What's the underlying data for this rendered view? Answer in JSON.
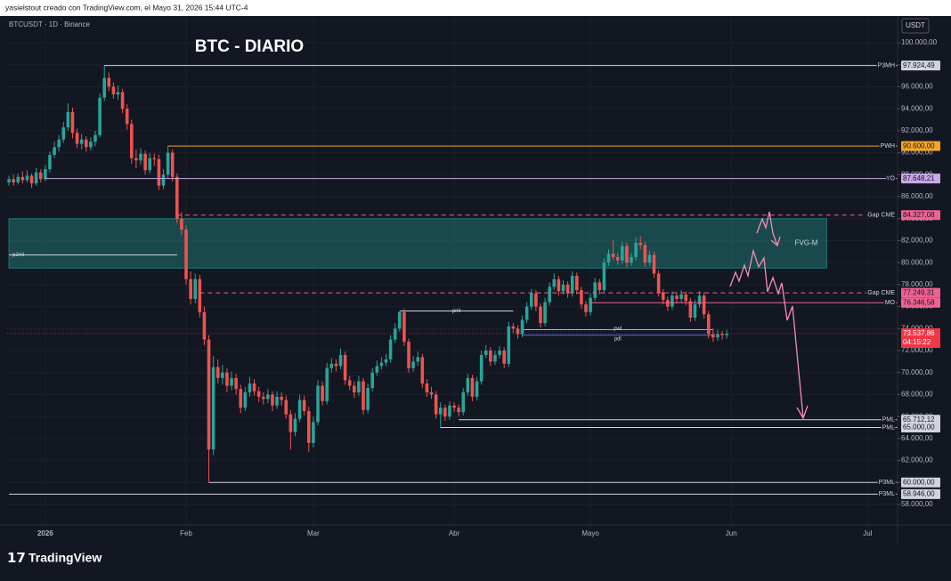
{
  "chart_data": {
    "type": "candlestick",
    "header": "yasielstout creado con TradingView.com, el Mayo 31, 2026 15:44 UTC-4",
    "symbol": "BTCUSDT · 1D · Binance",
    "title": "BTC - DIARIO",
    "currency": "USDT",
    "brand": "TradingView",
    "up_color": "#26a69a",
    "down_color": "#ef5350",
    "ylim": [
      56140,
      102430
    ],
    "xlim": [
      -0.4,
      195.6
    ],
    "yticks": [
      {
        "value": 58000,
        "label": "58.000,00"
      },
      {
        "value": 60000,
        "label": "60.000,00"
      },
      {
        "value": 62000,
        "label": "62.000,00"
      },
      {
        "value": 64000,
        "label": "64.000,00"
      },
      {
        "value": 66000,
        "label": "66.000,00"
      },
      {
        "value": 68000,
        "label": "68.000,00"
      },
      {
        "value": 70000,
        "label": "70.000,00"
      },
      {
        "value": 72000,
        "label": "72.000,00"
      },
      {
        "value": 74000,
        "label": "74.000,00"
      },
      {
        "value": 76000,
        "label": "76.000,00"
      },
      {
        "value": 78000,
        "label": "78.000,00"
      },
      {
        "value": 80000,
        "label": "80.000,00"
      },
      {
        "value": 82000,
        "label": "82.000,00"
      },
      {
        "value": 84000,
        "label": "84.000,00"
      },
      {
        "value": 86000,
        "label": "86.000,00"
      },
      {
        "value": 88000,
        "label": "88.000,00"
      },
      {
        "value": 90000,
        "label": "90.000,00"
      },
      {
        "value": 92000,
        "label": "92.000,00"
      },
      {
        "value": 94000,
        "label": "94.000,00"
      },
      {
        "value": 96000,
        "label": "96.000,00"
      },
      {
        "value": 98000,
        "label": "98.000,00"
      },
      {
        "value": 100000,
        "label": "100.000,00"
      }
    ],
    "xticks": [
      {
        "value": 8,
        "label": "2026"
      },
      {
        "value": 39,
        "label": "Feb"
      },
      {
        "value": 67,
        "label": "Mar"
      },
      {
        "value": 98,
        "label": "Abr"
      },
      {
        "value": 128,
        "label": "Mayo"
      },
      {
        "value": 159,
        "label": "Jun"
      },
      {
        "value": 189,
        "label": "Jul"
      }
    ],
    "candles": [
      [
        87300,
        87900,
        87000,
        87600
      ],
      [
        87600,
        88000,
        87000,
        87300
      ],
      [
        87300,
        88100,
        87100,
        87800
      ],
      [
        87800,
        88300,
        87200,
        87500
      ],
      [
        87500,
        88400,
        87300,
        87900
      ],
      [
        87900,
        88100,
        86800,
        87200
      ],
      [
        87200,
        88600,
        87000,
        88200
      ],
      [
        88200,
        88500,
        87300,
        87600
      ],
      [
        87600,
        88900,
        87400,
        88500
      ],
      [
        88500,
        90100,
        88200,
        89800
      ],
      [
        89800,
        91000,
        89500,
        90500
      ],
      [
        90500,
        91600,
        90100,
        91200
      ],
      [
        91200,
        92800,
        90900,
        92300
      ],
      [
        92300,
        94500,
        92000,
        93700
      ],
      [
        93700,
        94100,
        91300,
        91800
      ],
      [
        91800,
        92200,
        90400,
        90800
      ],
      [
        90800,
        91700,
        90300,
        91200
      ],
      [
        91200,
        91500,
        90100,
        90500
      ],
      [
        90500,
        91400,
        90200,
        91000
      ],
      [
        91000,
        92000,
        90600,
        91600
      ],
      [
        91600,
        95400,
        91400,
        95000
      ],
      [
        95000,
        97924.49,
        94700,
        96800
      ],
      [
        96800,
        97300,
        95600,
        96000
      ],
      [
        96000,
        96400,
        94900,
        95300
      ],
      [
        95300,
        96100,
        94800,
        95500
      ],
      [
        95500,
        95800,
        93600,
        94000
      ],
      [
        94000,
        94400,
        92100,
        92600
      ],
      [
        92600,
        93000,
        89000,
        89500
      ],
      [
        89500,
        90300,
        88600,
        89300
      ],
      [
        89300,
        90400,
        88900,
        89900
      ],
      [
        89900,
        90200,
        88000,
        88400
      ],
      [
        88400,
        90000,
        88100,
        89500
      ],
      [
        89500,
        89900,
        88800,
        89400
      ],
      [
        89400,
        89800,
        86600,
        87000
      ],
      [
        87000,
        88500,
        86700,
        88000
      ],
      [
        88000,
        90600,
        87700,
        90000
      ],
      [
        90000,
        90300,
        87400,
        87800
      ],
      [
        87800,
        88100,
        83600,
        84000
      ],
      [
        84000,
        84600,
        82500,
        83000
      ],
      [
        83000,
        83400,
        78000,
        78500
      ],
      [
        78500,
        79200,
        76200,
        76700
      ],
      [
        76700,
        79000,
        76300,
        78500
      ],
      [
        78500,
        78900,
        75000,
        75500
      ],
      [
        75500,
        76000,
        72500,
        73000
      ],
      [
        73000,
        73400,
        60000,
        63000
      ],
      [
        63000,
        71500,
        62500,
        70500
      ],
      [
        70500,
        71200,
        69000,
        69500
      ],
      [
        69500,
        70700,
        68900,
        70000
      ],
      [
        70000,
        70400,
        68200,
        68800
      ],
      [
        68800,
        70100,
        68400,
        69500
      ],
      [
        69500,
        69900,
        68000,
        68500
      ],
      [
        68500,
        68900,
        66300,
        66800
      ],
      [
        66800,
        68700,
        66500,
        68200
      ],
      [
        68200,
        69600,
        67800,
        69000
      ],
      [
        69000,
        69400,
        67900,
        68300
      ],
      [
        68300,
        68700,
        67300,
        67800
      ],
      [
        67800,
        68200,
        67100,
        67600
      ],
      [
        67600,
        68500,
        67200,
        68000
      ],
      [
        68000,
        68300,
        66500,
        67000
      ],
      [
        67000,
        68300,
        66700,
        67800
      ],
      [
        67800,
        68200,
        67000,
        67500
      ],
      [
        67500,
        67900,
        65800,
        66200
      ],
      [
        66200,
        66600,
        63000,
        64600
      ],
      [
        64600,
        66300,
        64200,
        65800
      ],
      [
        65800,
        68000,
        65500,
        67500
      ],
      [
        67500,
        67900,
        66100,
        66500
      ],
      [
        66500,
        66900,
        62800,
        63600
      ],
      [
        63600,
        66000,
        63200,
        65500
      ],
      [
        65500,
        69300,
        65200,
        68800
      ],
      [
        68800,
        69200,
        67000,
        67400
      ],
      [
        67400,
        70900,
        67100,
        70400
      ],
      [
        70400,
        71300,
        70000,
        70800
      ],
      [
        70800,
        71200,
        70100,
        70600
      ],
      [
        70600,
        72200,
        70300,
        71600
      ],
      [
        71600,
        71900,
        68900,
        69300
      ],
      [
        69300,
        69700,
        68400,
        68800
      ],
      [
        68800,
        69200,
        67700,
        68200
      ],
      [
        68200,
        69700,
        67900,
        69200
      ],
      [
        69200,
        69500,
        66200,
        66600
      ],
      [
        66600,
        69000,
        66300,
        68600
      ],
      [
        68600,
        70400,
        68300,
        70000
      ],
      [
        70000,
        71100,
        69700,
        70600
      ],
      [
        70600,
        71400,
        70300,
        70900
      ],
      [
        70900,
        71700,
        70600,
        71200
      ],
      [
        71200,
        73400,
        70900,
        73000
      ],
      [
        73000,
        74500,
        72700,
        74000
      ],
      [
        74000,
        75600,
        73700,
        75500
      ],
      [
        75500,
        75800,
        72400,
        72800
      ],
      [
        72800,
        73100,
        70000,
        70400
      ],
      [
        70400,
        71500,
        70100,
        71000
      ],
      [
        71000,
        71900,
        70600,
        71400
      ],
      [
        71400,
        71700,
        68600,
        69000
      ],
      [
        69000,
        69400,
        67800,
        68200
      ],
      [
        68200,
        68700,
        67600,
        68000
      ],
      [
        68000,
        68300,
        65800,
        66200
      ],
      [
        66200,
        67300,
        65000,
        66800
      ],
      [
        66800,
        67100,
        65600,
        66000
      ],
      [
        66000,
        67400,
        65700,
        67000
      ],
      [
        67000,
        67300,
        66400,
        66800
      ],
      [
        66800,
        67100,
        66000,
        66400
      ],
      [
        66400,
        68600,
        66100,
        68200
      ],
      [
        68200,
        69900,
        67900,
        69500
      ],
      [
        69500,
        69800,
        67400,
        67800
      ],
      [
        67800,
        69600,
        67500,
        69200
      ],
      [
        69200,
        72000,
        68900,
        71600
      ],
      [
        71600,
        72500,
        71300,
        72000
      ],
      [
        72000,
        72300,
        70600,
        71000
      ],
      [
        71000,
        72000,
        70700,
        71600
      ],
      [
        71600,
        72400,
        71300,
        72000
      ],
      [
        72000,
        72300,
        70400,
        70800
      ],
      [
        70800,
        74600,
        70500,
        74200
      ],
      [
        74200,
        74500,
        73600,
        74000
      ],
      [
        74000,
        74300,
        73100,
        73500
      ],
      [
        73500,
        75200,
        73200,
        74800
      ],
      [
        74800,
        76400,
        74500,
        76000
      ],
      [
        76000,
        77600,
        75700,
        77200
      ],
      [
        77200,
        77500,
        75600,
        76000
      ],
      [
        76000,
        76300,
        74100,
        74500
      ],
      [
        74500,
        76800,
        74200,
        76400
      ],
      [
        76400,
        78200,
        76100,
        77800
      ],
      [
        77800,
        79000,
        77500,
        78500
      ],
      [
        78500,
        78800,
        77000,
        77400
      ],
      [
        77400,
        78400,
        77100,
        78000
      ],
      [
        78000,
        78300,
        76800,
        77200
      ],
      [
        77200,
        79200,
        76900,
        78800
      ],
      [
        78800,
        79100,
        77100,
        77500
      ],
      [
        77500,
        77800,
        75800,
        76200
      ],
      [
        76200,
        76500,
        75100,
        75500
      ],
      [
        75500,
        77200,
        75200,
        76800
      ],
      [
        76800,
        78600,
        76500,
        78200
      ],
      [
        78200,
        78500,
        77100,
        77500
      ],
      [
        77500,
        80400,
        77200,
        80000
      ],
      [
        80000,
        81200,
        79700,
        80800
      ],
      [
        80800,
        82100,
        80200,
        80500
      ],
      [
        80500,
        80900,
        79800,
        80200
      ],
      [
        80200,
        81900,
        79900,
        81500
      ],
      [
        81500,
        81800,
        79600,
        80000
      ],
      [
        80000,
        80900,
        79700,
        80500
      ],
      [
        80500,
        82300,
        80200,
        81800
      ],
      [
        81800,
        82400,
        81200,
        81600
      ],
      [
        81600,
        81900,
        79600,
        80000
      ],
      [
        80000,
        81100,
        79700,
        80700
      ],
      [
        80700,
        81000,
        78600,
        79000
      ],
      [
        79000,
        79300,
        76900,
        77300
      ],
      [
        77300,
        77600,
        76200,
        76600
      ],
      [
        76600,
        76900,
        75600,
        76000
      ],
      [
        76000,
        77400,
        75700,
        77000
      ],
      [
        77000,
        77300,
        76300,
        76700
      ],
      [
        76700,
        77500,
        76400,
        77100
      ],
      [
        77100,
        77400,
        76100,
        76500
      ],
      [
        76500,
        76800,
        74600,
        75000
      ],
      [
        75000,
        76600,
        74700,
        76200
      ],
      [
        76200,
        77400,
        75900,
        77000
      ],
      [
        77000,
        77300,
        74900,
        75300
      ],
      [
        75300,
        75600,
        73100,
        73500
      ],
      [
        73500,
        74000,
        72800,
        73200
      ],
      [
        73200,
        73900,
        72900,
        73500
      ],
      [
        73500,
        73800,
        73000,
        73400
      ],
      [
        73400,
        73900,
        73100,
        73537.86
      ]
    ],
    "levels": [
      {
        "name": "P3MH",
        "value": 97924.49,
        "label": "97.924,49",
        "color": "#d1d4dc",
        "from": 21
      },
      {
        "name": "PWH",
        "value": 90600,
        "label": "90.600,00",
        "color": "#f5a623",
        "from": 35
      },
      {
        "name": "YO",
        "value": 87648.21,
        "label": "87.648,21",
        "color": "#c9a8e6",
        "from": 8
      },
      {
        "name": "Gap CME",
        "value": 84327.08,
        "label": "84.327,08",
        "color": "#f06292",
        "from": 37,
        "dashed": true
      },
      {
        "name": "Gap CME",
        "value": 77249.31,
        "label": "77.249,31",
        "color": "#f06292",
        "from": 42,
        "dashed": true
      },
      {
        "name": "MO",
        "value": 76346.58,
        "label": "76.346,58",
        "color": "#f06292",
        "from": 128
      },
      {
        "name": "PML",
        "value": 65712.12,
        "label": "65.712,12",
        "color": "#d1d4dc",
        "from": 99
      },
      {
        "name": "PML",
        "value": 65000,
        "label": "65.000,00",
        "color": "#d1d4dc",
        "from": 95
      },
      {
        "name": "P3ML",
        "value": 60000,
        "label": "60.000,00",
        "color": "#d1d4dc",
        "from": 44
      },
      {
        "name": "P3ML",
        "value": 58946,
        "label": "58.946,00",
        "color": "#d1d4dc",
        "from": 0
      }
    ],
    "short_levels": [
      {
        "name": "p2ml",
        "value": 80700,
        "from": 0,
        "to": 37,
        "color": "#d1d4dc"
      },
      {
        "name": "pml",
        "value": 75600,
        "from": 86,
        "to": 111,
        "color": "#d1d4dc"
      },
      {
        "name": "pwl",
        "value": 73900,
        "from": 113,
        "to": 155,
        "color": "#f5a623"
      },
      {
        "name": "pdl",
        "value": 73400,
        "from": 113,
        "to": 155,
        "color": "#4a6cf7"
      }
    ],
    "zone": {
      "name": "FVG-M",
      "low": 79500,
      "high": 84000,
      "from": 0,
      "to": 180,
      "color": "#26a69a"
    },
    "current": {
      "value": 73537.86,
      "label": "73.537,86",
      "countdown": "04:15:22",
      "color": "#f23645"
    }
  }
}
